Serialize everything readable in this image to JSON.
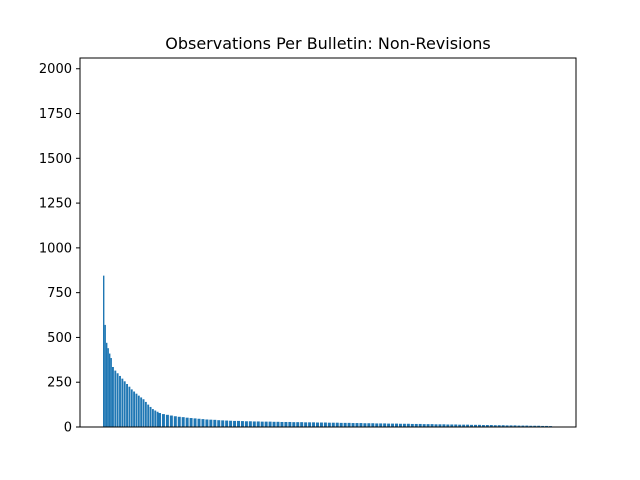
{
  "chart_data": {
    "type": "bar",
    "title": "Observations Per Bulletin: Non-Revisions",
    "xlabel": "",
    "ylabel": "",
    "ylim": [
      0,
      2060
    ],
    "yticks": [
      0,
      250,
      500,
      750,
      1000,
      1250,
      1500,
      1750,
      2000
    ],
    "ytick_labels": [
      "0",
      "250",
      "500",
      "750",
      "1000",
      "1250",
      "1500",
      "1750",
      "2000"
    ],
    "xticks_visible": false,
    "grid": false,
    "legend": "none",
    "colors": {
      "bar": "#1f77b4",
      "axis": "#000000",
      "background": "#ffffff"
    },
    "segments": [
      {
        "values": [
          845,
          570,
          470,
          440,
          410,
          385
        ]
      },
      {
        "values": [
          335,
          315,
          300,
          285,
          270,
          255,
          240,
          225,
          210,
          198,
          186,
          175,
          165,
          155,
          140,
          125,
          112,
          100,
          92,
          85
        ]
      },
      {
        "values": [
          78,
          72,
          68,
          64,
          60,
          57,
          55,
          52,
          50,
          48,
          46,
          44,
          42,
          41,
          40,
          38,
          37,
          36,
          35,
          34,
          34,
          33,
          32,
          32,
          31,
          31,
          30,
          30,
          30,
          29,
          29,
          28,
          28,
          28,
          27,
          27,
          27,
          26,
          26,
          26,
          25,
          25,
          25,
          24,
          24,
          24,
          23,
          23,
          23,
          22,
          22,
          22,
          21,
          21,
          21,
          20,
          20,
          20,
          19,
          19,
          19,
          18,
          18,
          18,
          17,
          17,
          17,
          16,
          16,
          16,
          15,
          15,
          15,
          14,
          14,
          14,
          13,
          13,
          13,
          12,
          12,
          12,
          11,
          11,
          11,
          10,
          10,
          10,
          9,
          9,
          9,
          8,
          8,
          8,
          7,
          7,
          7,
          6,
          6,
          5
        ]
      }
    ]
  }
}
